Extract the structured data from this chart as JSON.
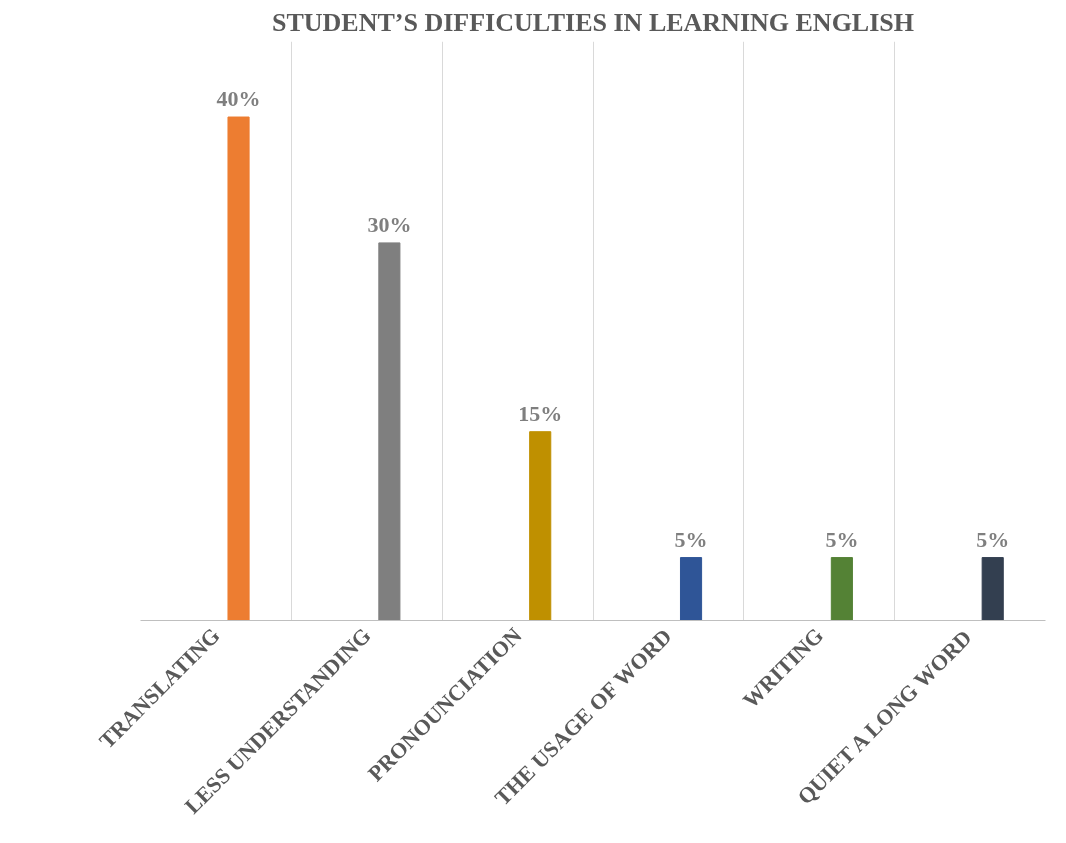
{
  "chart_data": {
    "type": "bar",
    "title": "STUDENT’S DIFFICULTIES IN LEARNING ENGLISH",
    "categories": [
      "TRANSLATING",
      "LESS UNDERSTANDING",
      "PRONOUNCIATION",
      "THE USAGE OF WORD",
      "WRITING",
      "QUIET A LONG WORD"
    ],
    "values": [
      40,
      30,
      15,
      5,
      5,
      5
    ],
    "colors": [
      "#ed7d31",
      "#7f7f7f",
      "#bf9000",
      "#2f5597",
      "#548235",
      "#333f50"
    ],
    "value_labels": [
      "40%",
      "30%",
      "15%",
      "5%",
      "5%",
      "5%"
    ],
    "grid": "x"
  }
}
